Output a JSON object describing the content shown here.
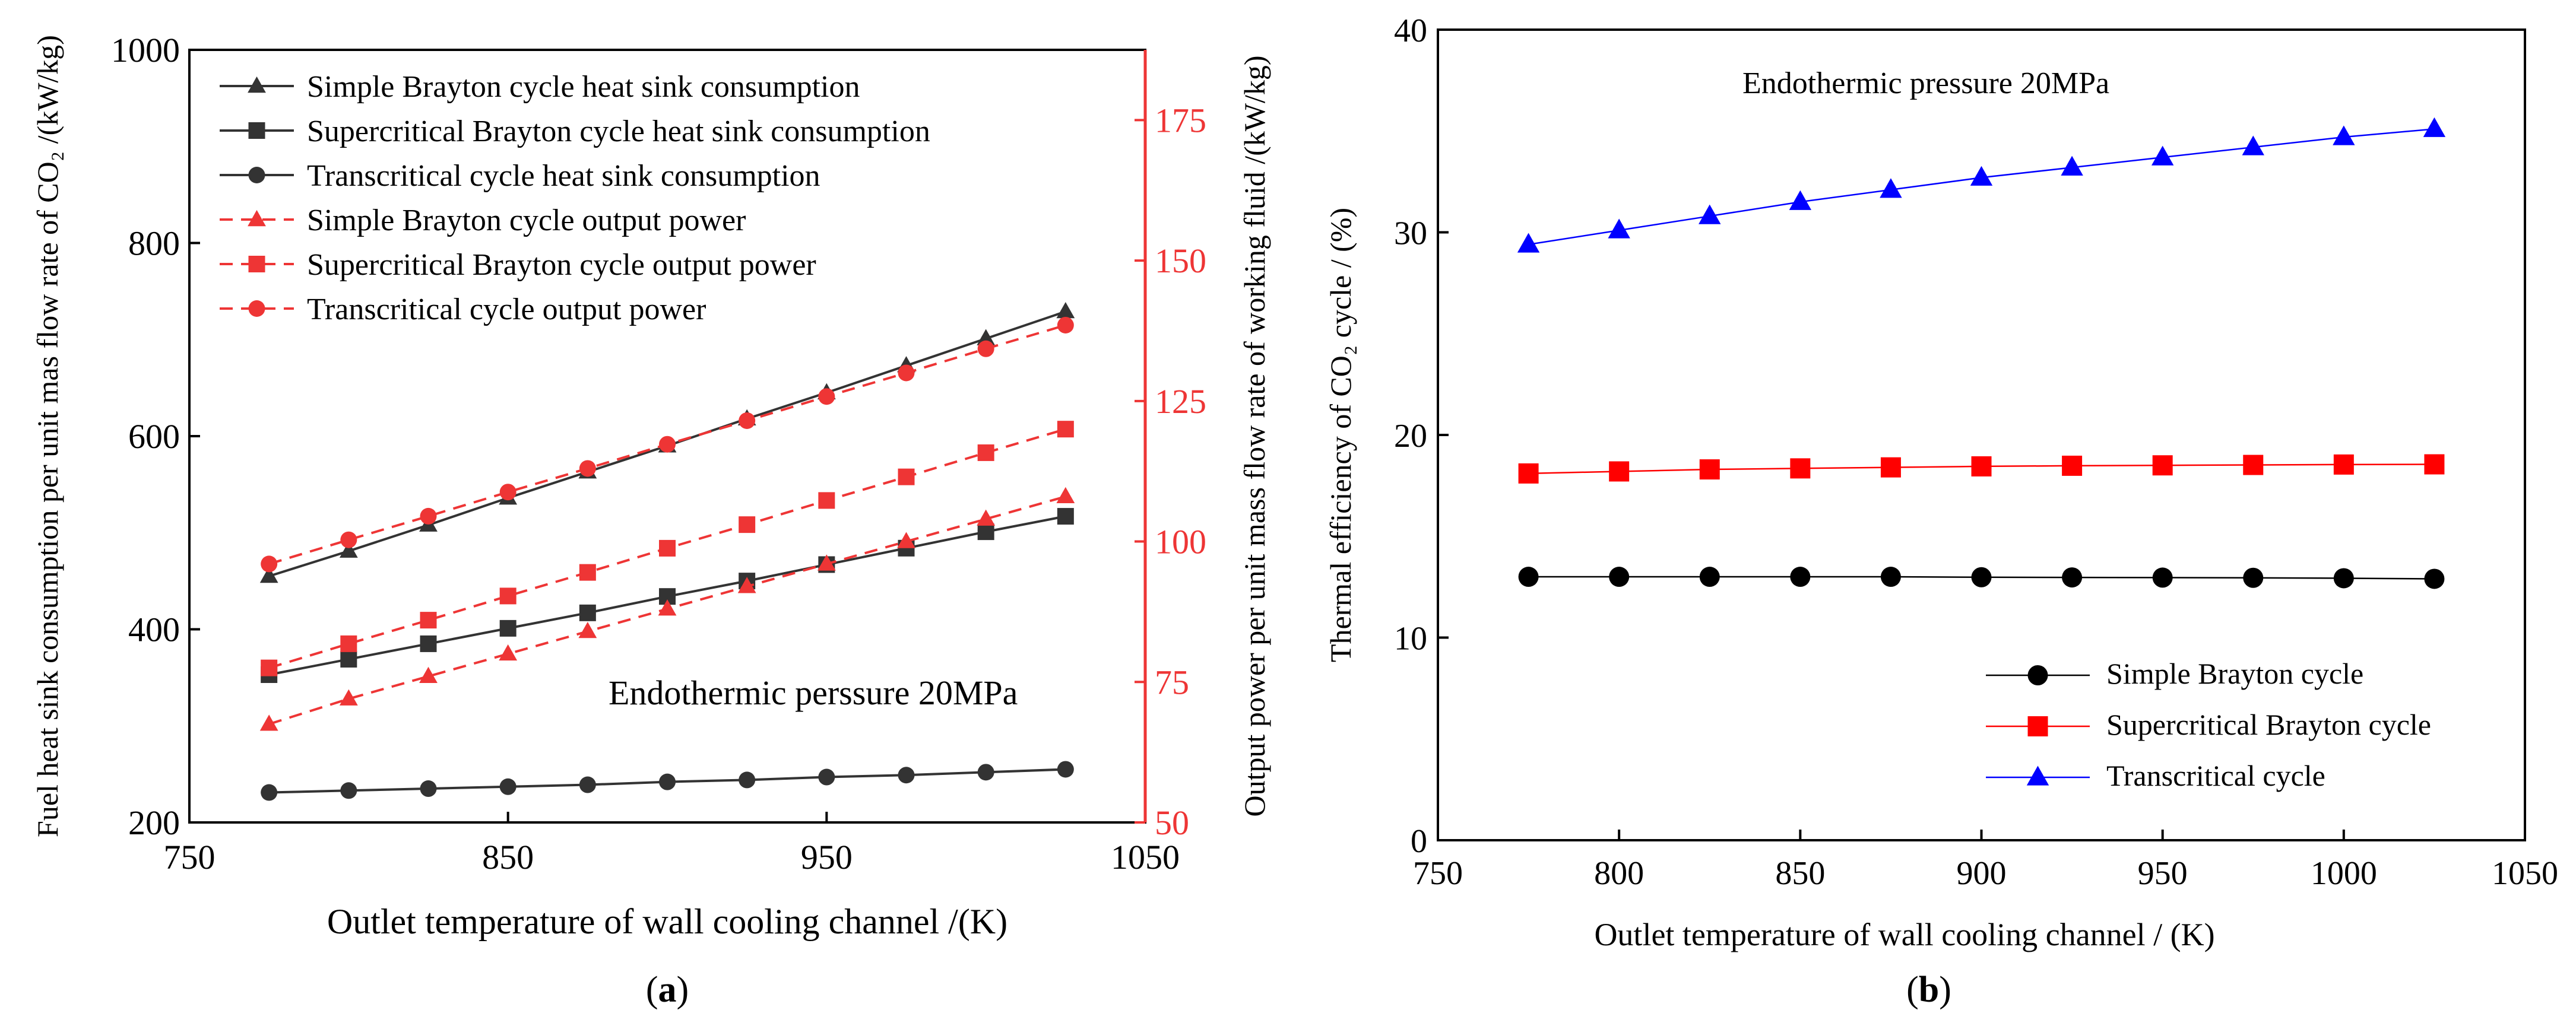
{
  "chart_data": [
    {
      "type": "line",
      "panel_label": "a",
      "xlabel": "Outlet temperature of wall cooling channel /(K)",
      "ylabel_left": "Fuel heat sink consumption per unit mas flow rate of CO₂ /(kW/kg)",
      "ylabel_right": "Output power per unit mass flow rate of working fluid /(kW/kg)",
      "xlim": [
        750,
        1050
      ],
      "ylim_left": [
        200,
        1000
      ],
      "ylim_right": [
        50,
        187.5
      ],
      "x_ticks": [
        "750",
        "850",
        "950",
        "1050"
      ],
      "y_ticks_left": [
        "200",
        "400",
        "600",
        "800",
        "1000"
      ],
      "y_ticks_right": [
        "50",
        "75",
        "100",
        "125",
        "150",
        "175"
      ],
      "annotation": "Endothermic perssure 20MPa",
      "legend_position": "top-left",
      "x": [
        775,
        800,
        825,
        850,
        875,
        900,
        925,
        950,
        975,
        1000,
        1025
      ],
      "series": [
        {
          "name": "Simple Brayton cycle heat sink consumption",
          "axis": "left",
          "color": "#333333",
          "dash": "solid",
          "marker": "triangle",
          "values": [
            455,
            481,
            508,
            536,
            563,
            590,
            618,
            645,
            673,
            701,
            729
          ]
        },
        {
          "name": "Supercritical Brayton cycle heat sink consumption",
          "axis": "left",
          "color": "#333333",
          "dash": "solid",
          "marker": "square",
          "values": [
            353,
            369,
            385,
            401,
            417,
            434,
            450,
            467,
            484,
            501,
            517
          ]
        },
        {
          "name": "Transcritical cycle heat sink consumption",
          "axis": "left",
          "color": "#333333",
          "dash": "solid",
          "marker": "circle",
          "values": [
            231,
            233,
            235,
            237,
            239,
            242,
            244,
            247,
            249,
            252,
            255
          ]
        },
        {
          "name": "Simple Brayton cycle output power",
          "axis": "right",
          "color": "#ee3535",
          "dash": "dashed",
          "marker": "triangle",
          "values": [
            67.5,
            72,
            76,
            80,
            84,
            88,
            92,
            96,
            100,
            104,
            108
          ]
        },
        {
          "name": "Supercritical Brayton cycle output power",
          "axis": "right",
          "color": "#ee3535",
          "dash": "dashed",
          "marker": "square",
          "values": [
            77.5,
            81.8,
            86,
            90.3,
            94.5,
            98.8,
            103,
            107.3,
            111.5,
            115.8,
            120
          ]
        },
        {
          "name": "Transcritical cycle output power",
          "axis": "right",
          "color": "#ee3535",
          "dash": "dashed",
          "marker": "circle",
          "values": [
            96,
            100.3,
            104.5,
            108.8,
            113,
            117.3,
            121.5,
            125.8,
            130,
            134.3,
            138.5
          ]
        }
      ]
    },
    {
      "type": "line",
      "panel_label": "b",
      "xlabel": "Outlet temperature of wall cooling channel / (K)",
      "ylabel": "Thermal efficiency of CO₂ cycle / (%)",
      "xlim": [
        750,
        1050
      ],
      "ylim": [
        0,
        40
      ],
      "x_ticks": [
        "750",
        "800",
        "850",
        "900",
        "950",
        "1000",
        "1050"
      ],
      "y_ticks": [
        "0",
        "10",
        "20",
        "30",
        "40"
      ],
      "annotation": "Endothermic pressure 20MPa",
      "legend_position": "bottom-right",
      "x": [
        775,
        800,
        825,
        850,
        875,
        900,
        925,
        950,
        975,
        1000,
        1025
      ],
      "series": [
        {
          "name": "Simple Brayton cycle",
          "color": "#000000",
          "dash": "solid",
          "marker": "circle",
          "values": [
            13.0,
            13.0,
            13.0,
            13.0,
            13.0,
            12.98,
            12.97,
            12.96,
            12.95,
            12.93,
            12.9
          ]
        },
        {
          "name": "Supercritical Brayton cycle",
          "color": "#ff0000",
          "dash": "solid",
          "marker": "square",
          "values": [
            18.1,
            18.2,
            18.3,
            18.35,
            18.4,
            18.45,
            18.48,
            18.5,
            18.52,
            18.54,
            18.55
          ]
        },
        {
          "name": "Transcritical cycle",
          "color": "#0000ff",
          "dash": "solid",
          "marker": "triangle",
          "values": [
            29.4,
            30.1,
            30.8,
            31.5,
            32.1,
            32.7,
            33.2,
            33.7,
            34.2,
            34.7,
            35.1
          ]
        }
      ]
    }
  ]
}
